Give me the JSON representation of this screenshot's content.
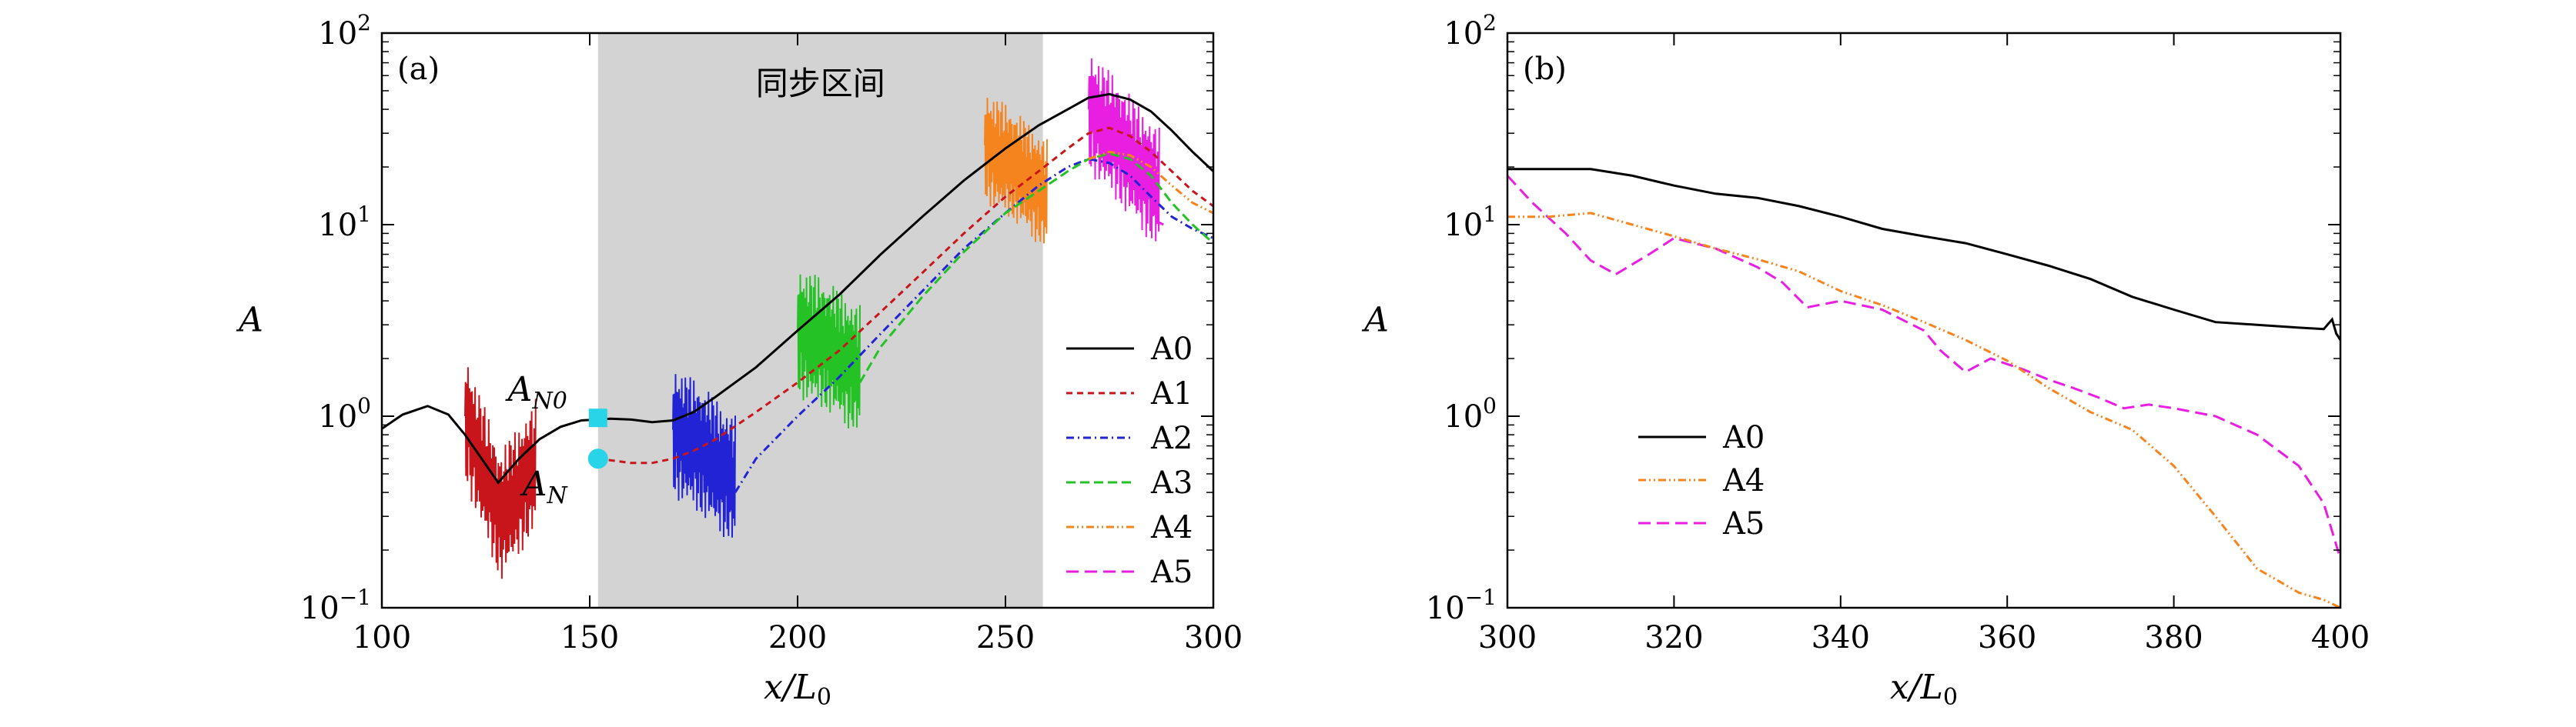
{
  "chart_data": [
    {
      "type": "line",
      "panel_label": "(a)",
      "xlabel_var": "x",
      "xlabel_den": "L",
      "xlabel_den_sub": "0",
      "ylabel": "A",
      "yscale": "log",
      "xlim": [
        100,
        300
      ],
      "ylim": [
        0.1,
        100
      ],
      "xticks": [
        100,
        150,
        200,
        250,
        300
      ],
      "yticks": [
        {
          "value": 0.1,
          "mant": "10",
          "exp": "−1"
        },
        {
          "value": 1,
          "mant": "10",
          "exp": "0"
        },
        {
          "value": 10,
          "mant": "10",
          "exp": "1"
        },
        {
          "value": 100,
          "mant": "10",
          "exp": "2"
        }
      ],
      "shaded_region": {
        "x": [
          152,
          259
        ],
        "label": "同步区间",
        "color": "#d3d3d3"
      },
      "annotations": [
        {
          "id": "AN0",
          "text": "A",
          "sub": "N0",
          "x": 152,
          "y": 0.98,
          "marker": "square",
          "color": "#29d3e8"
        },
        {
          "id": "AN",
          "text": "A",
          "sub": "N",
          "x": 152,
          "y": 0.6,
          "marker": "circle",
          "color": "#29d3e8"
        }
      ],
      "legend": {
        "position": "right",
        "entries": [
          "A0",
          "A1",
          "A2",
          "A3",
          "A4",
          "A5"
        ]
      },
      "series": [
        {
          "name": "A0",
          "color": "#000000",
          "dash": "solid",
          "x": [
            100,
            105,
            111,
            116,
            120,
            124,
            128,
            133,
            138,
            143,
            148,
            155,
            160,
            165,
            170,
            175,
            180,
            190,
            200,
            210,
            220,
            230,
            240,
            250,
            258,
            265,
            270,
            275,
            280,
            285,
            290,
            295,
            300
          ],
          "y": [
            0.86,
            1.02,
            1.13,
            1.02,
            0.8,
            0.6,
            0.45,
            0.6,
            0.76,
            0.88,
            0.95,
            0.97,
            0.96,
            0.93,
            0.95,
            1.05,
            1.25,
            1.8,
            2.8,
            4.3,
            7,
            11,
            17,
            25,
            33,
            40,
            46,
            48,
            45,
            39,
            31,
            24,
            19
          ]
        },
        {
          "name": "A1",
          "color": "#c8151b",
          "dash": "8,6",
          "x": [
            152,
            160,
            165,
            170,
            175,
            180,
            190,
            200,
            210,
            220,
            230,
            240,
            250,
            258,
            265,
            270,
            275,
            280,
            285,
            290,
            295,
            300
          ],
          "y": [
            0.6,
            0.57,
            0.57,
            0.6,
            0.66,
            0.75,
            1.05,
            1.5,
            2.2,
            3.5,
            5.6,
            9,
            14,
            19,
            25,
            30,
            32,
            29,
            24,
            19,
            15,
            12.5
          ],
          "osc": {
            "x": [
              120,
              137
            ],
            "center": [
              1.0,
              0.3,
              0.55
            ],
            "amp": 0.35
          }
        },
        {
          "name": "A2",
          "color": "#2323d6",
          "dash": "10,5,2,5",
          "x": [
            185,
            190,
            200,
            210,
            220,
            230,
            240,
            250,
            258,
            265,
            270,
            275,
            280,
            285,
            290,
            295,
            300
          ],
          "y": [
            0.4,
            0.6,
            1.0,
            1.6,
            2.7,
            4.5,
            7.5,
            11.5,
            16,
            20,
            22,
            21,
            18,
            14,
            11,
            9.5,
            8.5
          ],
          "osc": {
            "x": [
              170,
              185
            ],
            "center": [
              0.85,
              0.65,
              0.45
            ],
            "amp": 0.35
          }
        },
        {
          "name": "A3",
          "color": "#25c225",
          "dash": "12,6",
          "x": [
            215,
            220,
            230,
            240,
            250,
            258,
            265,
            270,
            275,
            280,
            285,
            290,
            295,
            300
          ],
          "y": [
            1.5,
            2.3,
            4.2,
            7.2,
            11.5,
            15,
            19,
            22,
            23.5,
            22,
            18,
            13,
            10,
            8
          ]
        },
        {
          "name": "A4",
          "color": "#f5841f",
          "dash": "10,4,2,4,2,4",
          "x": [
            270,
            275,
            280,
            285,
            290,
            295,
            300
          ],
          "y": [
            22,
            24,
            23,
            20,
            16,
            13,
            11.5
          ]
        },
        {
          "name": "A5",
          "color": "#e81ee0",
          "dash": "16,8",
          "x": [
            286,
            288
          ],
          "y": [
            10.5,
            10
          ]
        }
      ],
      "oscillation_bands": [
        {
          "series": "A3",
          "x": [
            200,
            215
          ],
          "center": [
            2.8,
            2.3,
            1.7
          ],
          "amp": 0.35
        },
        {
          "series": "A4",
          "x": [
            245,
            260
          ],
          "center": [
            26,
            20,
            14
          ],
          "amp": 0.3
        },
        {
          "series": "A5",
          "x": [
            270,
            287
          ],
          "center": [
            40,
            25,
            15
          ],
          "amp": 0.33
        }
      ]
    },
    {
      "type": "line",
      "panel_label": "(b)",
      "xlabel_var": "x",
      "xlabel_den": "L",
      "xlabel_den_sub": "0",
      "ylabel": "A",
      "yscale": "log",
      "xlim": [
        300,
        400
      ],
      "ylim": [
        0.1,
        100
      ],
      "xticks": [
        300,
        320,
        340,
        360,
        380,
        400
      ],
      "yticks": [
        {
          "value": 0.1,
          "mant": "10",
          "exp": "−1"
        },
        {
          "value": 1,
          "mant": "10",
          "exp": "0"
        },
        {
          "value": 10,
          "mant": "10",
          "exp": "1"
        },
        {
          "value": 100,
          "mant": "10",
          "exp": "2"
        }
      ],
      "legend": {
        "position": "bottom-left",
        "entries": [
          "A0",
          "A4",
          "A5"
        ]
      },
      "series": [
        {
          "name": "A0",
          "color": "#000000",
          "dash": "solid",
          "x": [
            300,
            305,
            310,
            315,
            320,
            325,
            330,
            335,
            340,
            345,
            350,
            355,
            360,
            365,
            370,
            375,
            380,
            385,
            390,
            395,
            398,
            399,
            399.5,
            400
          ],
          "y": [
            19.5,
            19.5,
            19.5,
            18,
            16,
            14.5,
            13.8,
            12.5,
            11,
            9.5,
            8.7,
            8,
            7,
            6.1,
            5.2,
            4.2,
            3.6,
            3.1,
            3.0,
            2.9,
            2.85,
            3.2,
            2.7,
            2.5
          ]
        },
        {
          "name": "A4",
          "color": "#f5841f",
          "dash": "10,4,2,4,2,4",
          "x": [
            300,
            305,
            310,
            315,
            320,
            325,
            330,
            335,
            340,
            345,
            350,
            355,
            360,
            365,
            370,
            375,
            380,
            385,
            390,
            395,
            398,
            400
          ],
          "y": [
            11,
            11,
            11.5,
            10,
            8.7,
            7.5,
            6.6,
            5.7,
            4.5,
            3.8,
            3.1,
            2.5,
            1.95,
            1.4,
            1.05,
            0.85,
            0.55,
            0.3,
            0.16,
            0.12,
            0.11,
            0.1
          ]
        },
        {
          "name": "A5",
          "color": "#e81ee0",
          "dash": "16,8",
          "x": [
            300,
            303,
            307,
            310,
            313,
            317,
            320,
            325,
            330,
            333,
            336,
            340,
            345,
            350,
            352,
            355,
            358,
            362,
            365,
            368,
            371,
            374,
            377,
            380,
            385,
            390,
            395,
            398,
            400
          ],
          "y": [
            18,
            13,
            9,
            6.5,
            5.5,
            7,
            8.5,
            7.5,
            6,
            5,
            3.7,
            4,
            3.6,
            2.8,
            2.2,
            1.7,
            2.0,
            1.75,
            1.55,
            1.4,
            1.25,
            1.1,
            1.15,
            1.1,
            1.0,
            0.8,
            0.55,
            0.35,
            0.18
          ]
        }
      ]
    }
  ]
}
